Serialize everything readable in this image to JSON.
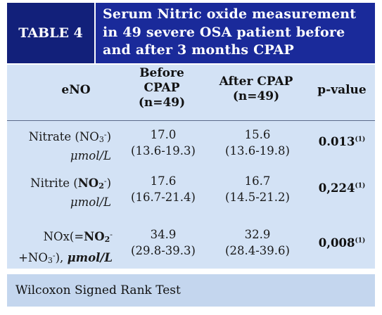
{
  "table": {
    "label": "TABLE 4",
    "title": "Serum Nitric oxide measurement in 49 severe OSA patient before and after 3 months CPAP treatment",
    "headers": {
      "col1": "eNO",
      "col2_line1": "Before",
      "col2_line2": "CPAP",
      "col2_line3": "(n=49)",
      "col3_line1": "After CPAP",
      "col3_line2": "(n=49)",
      "col4": "p-value"
    },
    "rows": [
      {
        "name_prefix": "Nitrate (NO",
        "name_sub": "3",
        "name_sup": "-",
        "name_suffix": ")",
        "unit": "μmol/L",
        "before_median": "17.0",
        "before_range": "(13.6-19.3)",
        "after_median": "15.6",
        "after_range": "(13.6-19.8)",
        "p_value": "0.013",
        "p_note": "(1)"
      },
      {
        "name_prefix": "Nitrite (",
        "name_bold": "NO",
        "name_sub": "2",
        "name_sup": "-",
        "name_suffix": ")",
        "unit": "μmol/L",
        "before_median": "17.6",
        "before_range": "(16.7-21.4)",
        "after_median": "16.7",
        "after_range": "(14.5-21.2)",
        "p_value": "0,224",
        "p_note": "(1)"
      },
      {
        "line1_prefix": "NOx(=",
        "line1_bold": "NO",
        "line1_sub": "2",
        "line1_sup": "-",
        "line2_prefix": "+NO",
        "line2_sub": "3",
        "line2_sup": "-",
        "line2_suffix": "),",
        "unit": "μmol/L",
        "before_median": "34.9",
        "before_range": "(29.8-39.3)",
        "after_median": "32.9",
        "after_range": "(28.4-39.6)",
        "p_value": "0,008",
        "p_note": "(1)"
      }
    ],
    "footer": "Wilcoxon Signed Rank Test"
  },
  "colors": {
    "header_bg": "#1a2a9a",
    "header_label_bg": "#12207a",
    "body_bg": "#d3e2f5",
    "footer_bg": "#c4d6ee"
  }
}
